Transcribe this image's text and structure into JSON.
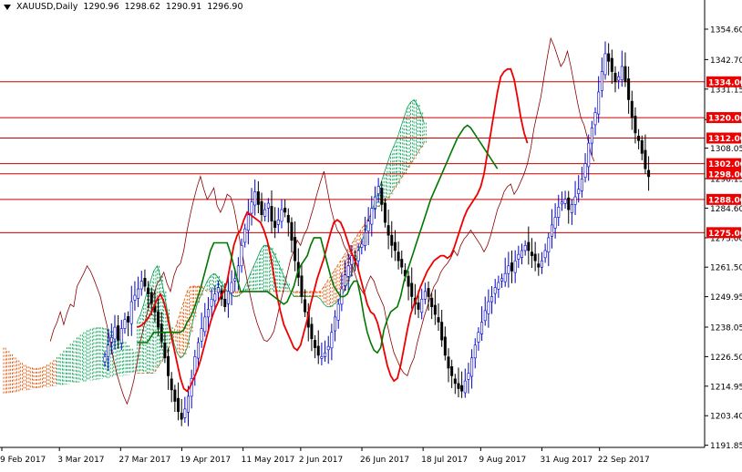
{
  "header": {
    "symbol_timeframe": "XAUUSD,Daily",
    "ohlc": [
      "1290.96",
      "1298.62",
      "1290.91",
      "1296.90"
    ]
  },
  "colors": {
    "background": "#ffffff",
    "axis": "#000000",
    "bull_candle": "#0000cc",
    "bear_candle": "#000000",
    "tenkan": "#ee0000",
    "kijun": "#007700",
    "chikou": "#8b0000",
    "kumo_bull": "#00a050",
    "kumo_bear": "#e05000",
    "level_line": "#cc0000",
    "level_label_bg": "#ee0000",
    "level_label_text": "#ffffff"
  },
  "chart_data": {
    "type": "candlestick",
    "indicator": "ichimoku",
    "ylim": [
      1191.0,
      1366.0
    ],
    "y_ticks": [
      1354.6,
      1342.7,
      1331.15,
      1319.25,
      1308.05,
      1296.15,
      1284.6,
      1273.0,
      1261.5,
      1249.95,
      1238.05,
      1226.5,
      1214.95,
      1203.4,
      1191.85
    ],
    "x_labels": [
      "9 Feb 2017",
      "3 Mar 2017",
      "27 Mar 2017",
      "19 Apr 2017",
      "11 May 2017",
      "2 Jun 2017",
      "26 Jun 2017",
      "18 Jul 2017",
      "9 Aug 2017",
      "31 Aug 2017",
      "22 Sep 2017"
    ],
    "x_label_index": [
      0,
      16,
      33,
      50,
      67,
      83,
      100,
      117,
      133,
      150,
      166
    ],
    "horizontal_levels": [
      1334.0,
      1320.0,
      1312.0,
      1302.0,
      1298.0,
      1288.0,
      1275.0
    ],
    "level_labels": [
      "1334.00",
      "1320.00",
      "1312.00",
      "1302.00",
      "1298.00",
      "1288.00",
      "1275.00"
    ],
    "current_price": 1296.9,
    "closes": [
      1226.5,
      1231.0,
      1234.0,
      1238.0,
      1233.0,
      1237.5,
      1241.0,
      1240.0,
      1248.0,
      1250.5,
      1253.0,
      1256.0,
      1254.0,
      1251.0,
      1247.5,
      1244.0,
      1238.0,
      1232.5,
      1226.0,
      1219.0,
      1213.5,
      1209.0,
      1205.0,
      1202.0,
      1206.0,
      1211.0,
      1218.0,
      1226.5,
      1232.0,
      1237.5,
      1242.0,
      1245.0,
      1249.0,
      1251.0,
      1253.5,
      1249.0,
      1246.0,
      1252.0,
      1255.5,
      1257.0,
      1262.0,
      1270.0,
      1276.5,
      1282.0,
      1287.0,
      1291.0,
      1286.0,
      1282.0,
      1284.0,
      1286.5,
      1279.5,
      1277.0,
      1280.0,
      1284.0,
      1283.0,
      1279.0,
      1272.0,
      1264.0,
      1257.5,
      1250.0,
      1244.0,
      1238.0,
      1233.5,
      1230.0,
      1227.0,
      1226.5,
      1228.0,
      1230.5,
      1236.0,
      1242.0,
      1247.0,
      1253.0,
      1258.5,
      1262.0,
      1266.0,
      1264.0,
      1268.0,
      1270.5,
      1275.0,
      1279.5,
      1284.5,
      1289.0,
      1293.0,
      1286.0,
      1279.0,
      1274.0,
      1270.0,
      1268.0,
      1264.0,
      1261.5,
      1258.0,
      1254.0,
      1250.0,
      1247.0,
      1245.0,
      1249.0,
      1252.0,
      1250.0,
      1246.0,
      1243.0,
      1240.0,
      1233.0,
      1227.0,
      1222.0,
      1219.0,
      1216.0,
      1214.0,
      1213.0,
      1217.0,
      1220.0,
      1226.0,
      1231.0,
      1236.0,
      1240.0,
      1244.5,
      1248.0,
      1250.0,
      1253.5,
      1255.5,
      1257.0,
      1259.0,
      1262.0,
      1260.0,
      1264.0,
      1266.5,
      1268.0,
      1270.0,
      1268.0,
      1266.0,
      1264.0,
      1261.5,
      1264.0,
      1268.0,
      1273.0,
      1278.0,
      1281.0,
      1285.0,
      1287.0,
      1288.0,
      1284.0,
      1286.0,
      1289.0,
      1292.0,
      1296.0,
      1302.0,
      1310.0,
      1316.0,
      1322.0,
      1330.0,
      1338.0,
      1345.0,
      1342.0,
      1338.0,
      1334.0,
      1336.0,
      1340.0,
      1334.0,
      1327.0,
      1320.0,
      1314.0,
      1311.0,
      1306.0,
      1300.0,
      1296.9
    ],
    "tenkan_sen": [
      1238.0,
      1238.5,
      1239.5,
      1241.0,
      1243.0,
      1246.0,
      1249.0,
      1251.0,
      1248.0,
      1243.0,
      1236.0,
      1230.0,
      1224.0,
      1218.0,
      1214.0,
      1213.0,
      1215.0,
      1218.0,
      1221.0,
      1225.0,
      1230.0,
      1235.0,
      1240.0,
      1244.0,
      1247.0,
      1250.0,
      1252.0,
      1256.0,
      1263.0,
      1270.0,
      1274.0,
      1276.0,
      1280.0,
      1283.0,
      1282.0,
      1281.0,
      1280.0,
      1279.0,
      1276.0,
      1272.0,
      1266.0,
      1258.0,
      1250.0,
      1244.0,
      1239.0,
      1236.0,
      1233.0,
      1230.0,
      1229.0,
      1231.0,
      1236.0,
      1241.0,
      1247.0,
      1252.0,
      1257.0,
      1261.0,
      1265.0,
      1270.0,
      1275.0,
      1279.0,
      1280.0,
      1279.0,
      1276.0,
      1272.0,
      1268.0,
      1265.0,
      1262.0,
      1257.0,
      1252.0,
      1247.0,
      1244.0,
      1243.0,
      1240.0,
      1235.0,
      1229.0,
      1223.0,
      1219.0,
      1217.0,
      1218.0,
      1223.0,
      1230.0,
      1237.0,
      1243.0,
      1247.0,
      1250.0,
      1254.0,
      1257.0,
      1260.0,
      1262.0,
      1264.0,
      1265.0,
      1266.0,
      1266.0,
      1265.0,
      1266.0,
      1269.0,
      1273.0,
      1277.0,
      1281.0,
      1284.0,
      1286.0,
      1288.0,
      1290.0,
      1293.0,
      1298.0,
      1306.0,
      1314.0,
      1322.0,
      1330.0,
      1336.0,
      1338.0,
      1339.0,
      1339.0,
      1335.0,
      1328.0,
      1320.0,
      1314.0,
      1310.0
    ],
    "kijun_sen": [
      1232.0,
      1232.0,
      1232.0,
      1232.0,
      1234.0,
      1236.0,
      1236.0,
      1236.0,
      1236.0,
      1236.0,
      1236.0,
      1236.0,
      1236.0,
      1236.0,
      1237.0,
      1240.0,
      1242.0,
      1245.0,
      1249.0,
      1253.0,
      1258.0,
      1263.0,
      1268.0,
      1271.0,
      1271.0,
      1271.0,
      1271.0,
      1271.0,
      1267.0,
      1262.0,
      1257.0,
      1252.0,
      1252.0,
      1252.0,
      1252.0,
      1252.0,
      1252.0,
      1252.0,
      1252.0,
      1252.0,
      1251.0,
      1250.0,
      1249.0,
      1248.0,
      1247.0,
      1248.0,
      1251.0,
      1254.0,
      1259.0,
      1262.0,
      1264.0,
      1266.0,
      1270.0,
      1273.0,
      1273.0,
      1273.0,
      1268.0,
      1263.0,
      1258.0,
      1254.0,
      1252.0,
      1250.0,
      1250.0,
      1251.0,
      1254.0,
      1256.0,
      1256.0,
      1250.0,
      1242.0,
      1236.0,
      1232.0,
      1229.0,
      1228.0,
      1230.0,
      1237.0,
      1241.0,
      1244.0,
      1245.0,
      1246.0,
      1250.0,
      1256.0,
      1260.0,
      1264.0,
      1268.0,
      1272.0,
      1276.0,
      1280.0,
      1284.0,
      1288.0,
      1291.0,
      1294.0,
      1297.0,
      1300.0,
      1303.0,
      1306.0,
      1309.0,
      1312.0,
      1314.0,
      1316.0,
      1317.0,
      1316.0,
      1314.0,
      1312.0,
      1310.0,
      1308.0,
      1306.0,
      1304.0,
      1302.0,
      1300.0
    ],
    "senkou_span_a": [
      1240.0,
      1243.0,
      1247.0,
      1252.0,
      1256.0,
      1260.0,
      1262.0,
      1258.0,
      1252.0,
      1245.0,
      1238.0,
      1232.0,
      1228.0,
      1226.0,
      1227.0,
      1230.0,
      1236.0,
      1242.0,
      1247.0,
      1250.0,
      1253.0,
      1256.0,
      1258.0,
      1259.0,
      1258.0,
      1256.0,
      1254.0,
      1252.0,
      1251.0,
      1250.0,
      1250.0,
      1251.0,
      1253.0,
      1256.0,
      1259.0,
      1262.0,
      1265.0,
      1268.0,
      1270.0,
      1270.0,
      1269.0,
      1267.0,
      1264.0,
      1261.0,
      1258.0,
      1255.0,
      1252.0,
      1250.0,
      1250.0,
      1250.0,
      1250.0,
      1250.0,
      1250.0,
      1250.0,
      1250.0,
      1249.0,
      1247.0,
      1246.0,
      1246.0,
      1247.0,
      1248.0,
      1250.0,
      1252.0,
      1255.0,
      1258.0,
      1262.0,
      1266.0,
      1270.0,
      1274.0,
      1278.0,
      1282.0,
      1286.0,
      1290.0,
      1294.0,
      1298.0,
      1302.0,
      1306.0,
      1309.0,
      1312.0,
      1316.0,
      1320.0,
      1324.0,
      1326.0,
      1327.0,
      1325.0,
      1322.0,
      1318.0
    ],
    "senkou_span_b": [
      1220.0,
      1220.0,
      1220.0,
      1220.0,
      1220.0,
      1220.0,
      1222.0,
      1224.0,
      1226.0,
      1228.0,
      1232.0,
      1236.0,
      1240.0,
      1244.0,
      1248.0,
      1252.0,
      1254.0,
      1254.0,
      1254.0,
      1254.0,
      1253.0,
      1252.0,
      1252.0,
      1252.0,
      1252.0,
      1252.0,
      1252.0,
      1252.0,
      1252.0,
      1252.0,
      1252.0,
      1252.0,
      1252.0,
      1252.0,
      1252.0,
      1252.0,
      1252.0,
      1252.0,
      1252.0,
      1252.0,
      1252.0,
      1252.0,
      1252.0,
      1252.0,
      1252.0,
      1252.0,
      1252.0,
      1252.0,
      1252.0,
      1252.0,
      1252.0,
      1252.0,
      1252.0,
      1252.0,
      1252.0,
      1252.0,
      1254.0,
      1256.0,
      1258.0,
      1260.0,
      1262.0,
      1264.0,
      1266.0,
      1268.0,
      1270.0,
      1272.0,
      1274.0,
      1276.0,
      1278.0,
      1280.0,
      1282.0,
      1284.0,
      1285.0,
      1286.0,
      1287.0,
      1288.0,
      1290.0,
      1292.0,
      1294.0,
      1296.0,
      1298.0,
      1300.0,
      1302.0,
      1304.0,
      1306.0,
      1308.0,
      1310.0
    ]
  }
}
